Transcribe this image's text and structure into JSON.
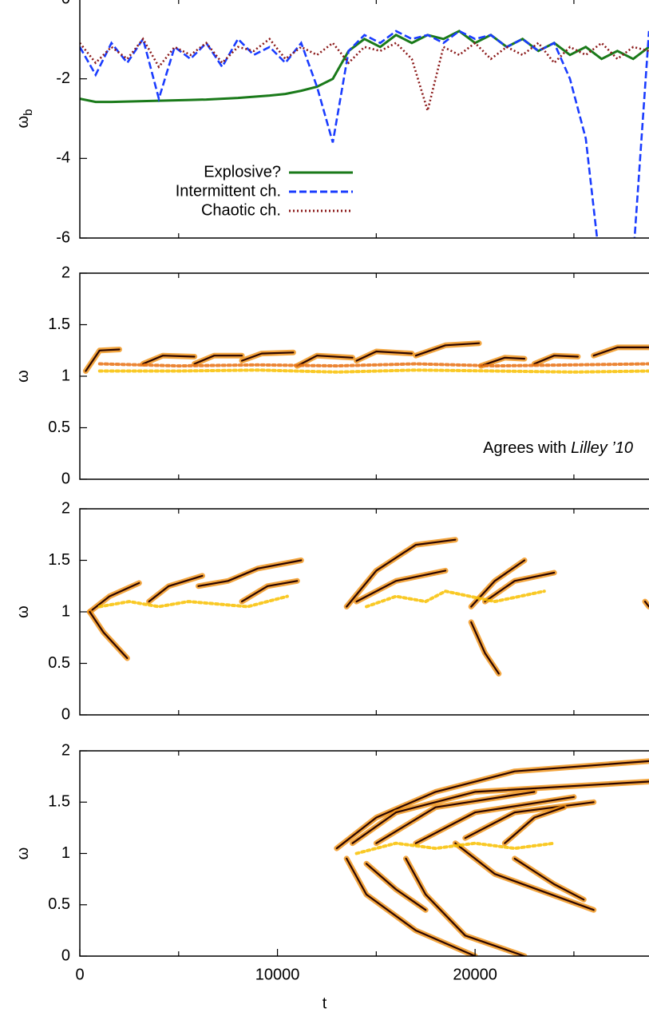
{
  "chart_data": [
    {
      "type": "line",
      "ylabel": "ω",
      "ylabel_sub": "b",
      "xlim": [
        0,
        28800
      ],
      "ylim": [
        -6,
        0
      ],
      "yticks": [
        -6,
        -4,
        -2,
        0
      ],
      "xminor": [
        5000,
        15000,
        25000
      ],
      "legend": "lower-left",
      "x": [
        0,
        800,
        1600,
        2400,
        3200,
        4000,
        4800,
        5600,
        6400,
        7200,
        8000,
        8800,
        9600,
        10400,
        11200,
        12000,
        12800,
        13600,
        14400,
        15200,
        16000,
        16800,
        17600,
        18400,
        19200,
        20000,
        20800,
        21600,
        22400,
        23200,
        24000,
        24800,
        25600,
        26400,
        27200,
        28000,
        28800
      ],
      "series": [
        {
          "name": "Explosive?",
          "color": "#1a7a1a",
          "dash": "solid",
          "values": [
            -2.5,
            -2.58,
            -2.58,
            -2.57,
            -2.56,
            -2.55,
            -2.54,
            -2.53,
            -2.52,
            -2.5,
            -2.48,
            -2.45,
            -2.42,
            -2.38,
            -2.3,
            -2.2,
            -2.0,
            -1.3,
            -1.0,
            -1.2,
            -0.9,
            -1.1,
            -0.9,
            -1.0,
            -0.8,
            -1.1,
            -0.9,
            -1.2,
            -1.0,
            -1.3,
            -1.1,
            -1.4,
            -1.2,
            -1.5,
            -1.3,
            -1.5,
            -1.2
          ]
        },
        {
          "name": "Intermittent ch.",
          "color": "#1a3cff",
          "dash": "dashed",
          "values": [
            -1.2,
            -1.9,
            -1.1,
            -1.6,
            -1.0,
            -2.5,
            -1.2,
            -1.5,
            -1.1,
            -1.7,
            -1.0,
            -1.4,
            -1.2,
            -1.6,
            -1.1,
            -2.2,
            -3.6,
            -1.3,
            -0.9,
            -1.1,
            -0.8,
            -1.0,
            -0.9,
            -1.1,
            -0.8,
            -1.0,
            -0.9,
            -1.2,
            -1.0,
            -1.3,
            -1.1,
            -2.0,
            -3.5,
            -7,
            -7,
            -6.5,
            -0.8
          ]
        },
        {
          "name": "Chaotic ch.",
          "color": "#8b1a1a",
          "dash": "dotted",
          "values": [
            -1.1,
            -1.6,
            -1.2,
            -1.5,
            -1.0,
            -1.7,
            -1.2,
            -1.4,
            -1.1,
            -1.6,
            -1.2,
            -1.3,
            -1.0,
            -1.5,
            -1.2,
            -1.4,
            -1.1,
            -1.6,
            -1.2,
            -1.3,
            -1.1,
            -1.5,
            -2.8,
            -1.2,
            -1.4,
            -1.1,
            -1.5,
            -1.2,
            -1.4,
            -1.1,
            -1.6,
            -1.2,
            -1.4,
            -1.1,
            -1.5,
            -1.2,
            -1.3
          ]
        }
      ]
    },
    {
      "type": "spectrogram",
      "ylabel": "ω",
      "xlim": [
        0,
        28800
      ],
      "ylim": [
        0,
        2
      ],
      "yticks": [
        0,
        0.5,
        1,
        1.5,
        2
      ],
      "xminor": [
        5000,
        15000,
        25000
      ],
      "color": "#f09010",
      "edge_color": "#2a0500",
      "annotation": "Agrees with ",
      "annotation_italic": "Lilley ’10",
      "ridges": [
        {
          "x": [
            300,
            1000,
            2000
          ],
          "values": [
            1.05,
            1.25,
            1.26
          ]
        },
        {
          "x": [
            3200,
            4200,
            5800
          ],
          "values": [
            1.12,
            1.2,
            1.19
          ]
        },
        {
          "x": [
            5800,
            6800,
            8200
          ],
          "values": [
            1.12,
            1.2,
            1.2
          ]
        },
        {
          "x": [
            8200,
            9200,
            10800
          ],
          "values": [
            1.15,
            1.22,
            1.23
          ]
        },
        {
          "x": [
            11000,
            12000,
            13800
          ],
          "values": [
            1.1,
            1.2,
            1.18
          ]
        },
        {
          "x": [
            14000,
            15000,
            16800
          ],
          "values": [
            1.15,
            1.24,
            1.22
          ]
        },
        {
          "x": [
            17000,
            18500,
            20200
          ],
          "values": [
            1.2,
            1.3,
            1.32
          ]
        },
        {
          "x": [
            20300,
            21500,
            22500
          ],
          "values": [
            1.1,
            1.18,
            1.17
          ]
        },
        {
          "x": [
            23000,
            24000,
            25200
          ],
          "values": [
            1.12,
            1.2,
            1.19
          ]
        },
        {
          "x": [
            26000,
            27200,
            28800
          ],
          "values": [
            1.2,
            1.28,
            1.28
          ]
        },
        {
          "x": [
            1000,
            5000,
            9000,
            13000,
            17000,
            21000,
            25000,
            28800
          ],
          "values": [
            1.12,
            1.1,
            1.11,
            1.1,
            1.12,
            1.1,
            1.11,
            1.12
          ],
          "color": "#e87010"
        },
        {
          "x": [
            1000,
            5000,
            9000,
            13000,
            17000,
            21000,
            25000,
            28800
          ],
          "values": [
            1.05,
            1.05,
            1.06,
            1.04,
            1.06,
            1.05,
            1.04,
            1.05
          ],
          "color": "#f8c000"
        }
      ]
    },
    {
      "type": "spectrogram",
      "ylabel": "ω",
      "xlim": [
        0,
        28800
      ],
      "ylim": [
        0,
        2
      ],
      "yticks": [
        0,
        0.5,
        1,
        1.5,
        2
      ],
      "xminor": [
        5000,
        15000,
        25000
      ],
      "color": "#f09010",
      "edge_color": "#2a0500",
      "ridges": [
        {
          "x": [
            500,
            1500,
            3000
          ],
          "values": [
            1.0,
            1.15,
            1.28
          ]
        },
        {
          "x": [
            500,
            1200,
            2400
          ],
          "values": [
            1.0,
            0.8,
            0.55
          ]
        },
        {
          "x": [
            3500,
            4500,
            6200
          ],
          "values": [
            1.1,
            1.25,
            1.35
          ]
        },
        {
          "x": [
            6000,
            7500,
            9000,
            11200
          ],
          "values": [
            1.25,
            1.3,
            1.42,
            1.5
          ]
        },
        {
          "x": [
            8200,
            9500,
            11000
          ],
          "values": [
            1.1,
            1.25,
            1.3
          ]
        },
        {
          "x": [
            13500,
            15000,
            17000,
            19000
          ],
          "values": [
            1.05,
            1.4,
            1.65,
            1.7
          ]
        },
        {
          "x": [
            14000,
            16000,
            18500
          ],
          "values": [
            1.1,
            1.3,
            1.4
          ]
        },
        {
          "x": [
            19800,
            21000,
            22500
          ],
          "values": [
            1.05,
            1.3,
            1.5
          ]
        },
        {
          "x": [
            19800,
            20500,
            21200
          ],
          "values": [
            0.9,
            0.6,
            0.4
          ]
        },
        {
          "x": [
            20500,
            22000,
            24000
          ],
          "values": [
            1.1,
            1.3,
            1.38
          ]
        },
        {
          "x": [
            28600,
            28800
          ],
          "values": [
            1.1,
            1.05
          ]
        },
        {
          "x": [
            1000,
            2500,
            4000,
            5500,
            8500,
            10500
          ],
          "values": [
            1.05,
            1.1,
            1.05,
            1.1,
            1.05,
            1.15
          ],
          "color": "#f8c000"
        },
        {
          "x": [
            14500,
            16000,
            17500,
            18500,
            21000,
            23500
          ],
          "values": [
            1.05,
            1.15,
            1.1,
            1.2,
            1.1,
            1.2
          ],
          "color": "#f8c000"
        }
      ]
    },
    {
      "type": "spectrogram",
      "ylabel": "ω",
      "xlabel": "t",
      "xlim": [
        0,
        28800
      ],
      "ylim": [
        0,
        2
      ],
      "yticks": [
        0,
        0.5,
        1,
        1.5,
        2
      ],
      "xticks": [
        0,
        10000,
        20000
      ],
      "xminor": [
        5000,
        15000,
        25000
      ],
      "color": "#f09010",
      "edge_color": "#2a0500",
      "ridges": [
        {
          "x": [
            13000,
            15000,
            18000,
            22000,
            28800
          ],
          "values": [
            1.05,
            1.35,
            1.6,
            1.8,
            1.9
          ]
        },
        {
          "x": [
            13500,
            14500,
            17000,
            20000
          ],
          "values": [
            0.95,
            0.6,
            0.25,
            0
          ]
        },
        {
          "x": [
            13800,
            16000,
            20000,
            28800
          ],
          "values": [
            1.1,
            1.4,
            1.6,
            1.7
          ]
        },
        {
          "x": [
            15000,
            18000,
            23000
          ],
          "values": [
            1.1,
            1.45,
            1.6
          ]
        },
        {
          "x": [
            16500,
            17500,
            19500,
            22500
          ],
          "values": [
            0.95,
            0.6,
            0.2,
            0
          ]
        },
        {
          "x": [
            17000,
            20000,
            25000
          ],
          "values": [
            1.1,
            1.4,
            1.55
          ]
        },
        {
          "x": [
            19000,
            21000,
            26000
          ],
          "values": [
            1.1,
            0.8,
            0.45
          ]
        },
        {
          "x": [
            19500,
            22000,
            26000
          ],
          "values": [
            1.15,
            1.4,
            1.5
          ]
        },
        {
          "x": [
            14500,
            16000,
            17500
          ],
          "values": [
            0.9,
            0.65,
            0.45
          ]
        },
        {
          "x": [
            21500,
            23000,
            24500
          ],
          "values": [
            1.1,
            1.35,
            1.45
          ]
        },
        {
          "x": [
            22000,
            24000,
            25500
          ],
          "values": [
            0.95,
            0.7,
            0.55
          ]
        },
        {
          "x": [
            14000,
            16000,
            18000,
            20000,
            22000,
            24000
          ],
          "values": [
            1.0,
            1.1,
            1.05,
            1.1,
            1.05,
            1.1
          ],
          "color": "#f8c000"
        }
      ]
    }
  ]
}
